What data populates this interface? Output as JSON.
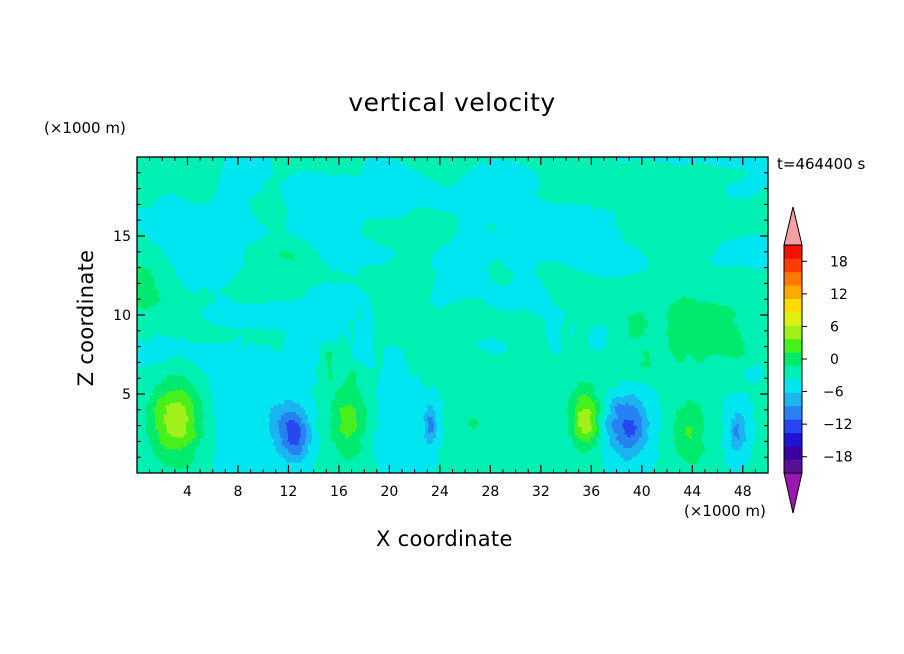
{
  "chart_data": {
    "type": "heatmap",
    "title": "vertical velocity",
    "xlabel": "X coordinate",
    "ylabel": "Z coordinate",
    "x_unit": "(×1000 m)",
    "y_unit": "(×1000 m)",
    "time_label": "t=464400 s",
    "xlim": [
      0,
      50
    ],
    "ylim": [
      0,
      20
    ],
    "x_ticks": [
      4,
      8,
      12,
      16,
      20,
      24,
      28,
      32,
      36,
      40,
      44,
      48
    ],
    "y_ticks": [
      5,
      10,
      15
    ],
    "colorbar": {
      "range": [
        -21,
        21
      ],
      "step": 3,
      "labeled_ticks": [
        18,
        12,
        6,
        0,
        -6,
        -12,
        -18
      ],
      "colors": [
        "#5a0f96",
        "#3c00a0",
        "#1e14d2",
        "#2846f0",
        "#2882f0",
        "#1eb4f0",
        "#00e6f0",
        "#00f0b4",
        "#00eb6e",
        "#46f01e",
        "#a0f01e",
        "#dcf014",
        "#ffdc00",
        "#ffaa00",
        "#ff7800",
        "#ff3c00",
        "#f01400"
      ],
      "low_arrow_color": "#9b18b0",
      "high_arrow_color": "#f5a0a0"
    },
    "features": [
      {
        "x": 3.1,
        "z": 3.4,
        "w": 10.5,
        "sx": 1.5,
        "sz": 1.9
      },
      {
        "x": 12.6,
        "z": 2.4,
        "w": -9,
        "sx": 0.8,
        "sz": 1.2
      },
      {
        "x": 11.5,
        "z": 3.0,
        "w": -4,
        "sx": 0.9,
        "sz": 1.3
      },
      {
        "x": 16.8,
        "z": 3.3,
        "w": 7,
        "sx": 1.1,
        "sz": 1.8
      },
      {
        "x": 23.3,
        "z": 3.0,
        "w": -7,
        "sx": 0.4,
        "sz": 0.9
      },
      {
        "x": 26.8,
        "z": 3.1,
        "w": 3,
        "sx": 1.1,
        "sz": 0.8
      },
      {
        "x": 35.5,
        "z": 3.4,
        "w": 11,
        "sx": 0.8,
        "sz": 1.3
      },
      {
        "x": 38.9,
        "z": 3.0,
        "w": -10,
        "sx": 1.1,
        "sz": 1.4
      },
      {
        "x": 43.8,
        "z": 2.6,
        "w": 6,
        "sx": 1.0,
        "sz": 1.6
      },
      {
        "x": 47.6,
        "z": 2.6,
        "w": -7,
        "sx": 0.5,
        "sz": 1.0
      },
      {
        "x": 8.0,
        "z": 3.2,
        "w": -2.5,
        "sx": 1.8,
        "sz": 2.0
      },
      {
        "x": 20.5,
        "z": 3.2,
        "w": -2.5,
        "sx": 1.4,
        "sz": 2.0
      }
    ]
  }
}
